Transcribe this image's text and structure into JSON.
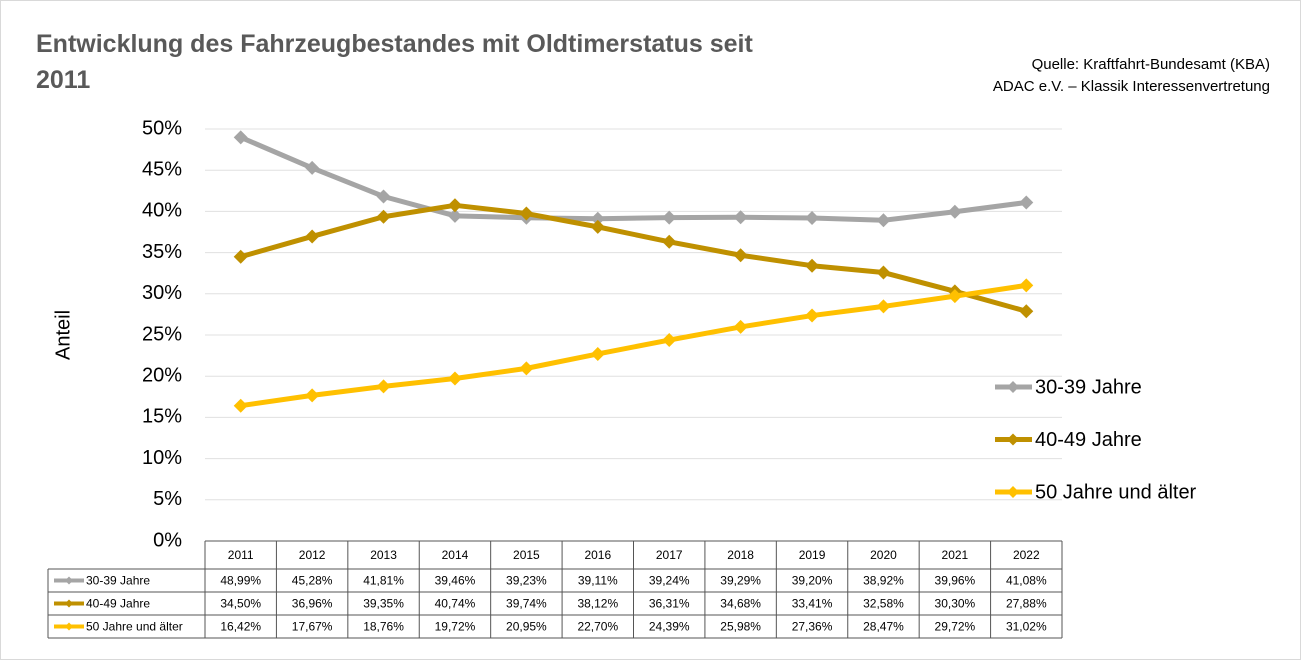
{
  "chart_data": {
    "type": "line",
    "title": "Entwicklung des Fahrzeugbestandes mit Oldtimerstatus seit 2011",
    "source": [
      "Quelle: Kraftfahrt-Bundesamt (KBA)",
      "ADAC e.V. – Klassik Interessenvertretung"
    ],
    "y_label": "Anteil",
    "categories": [
      "2011",
      "2012",
      "2013",
      "2014",
      "2015",
      "2016",
      "2017",
      "2018",
      "2019",
      "2020",
      "2021",
      "2022"
    ],
    "series": [
      {
        "name": "30-39 Jahre",
        "color": "#a5a5a5",
        "values": [
          48.99,
          45.28,
          41.81,
          39.46,
          39.23,
          39.11,
          39.24,
          39.29,
          39.2,
          38.92,
          39.96,
          41.08
        ],
        "value_labels": [
          "48,99%",
          "45,28%",
          "41,81%",
          "39,46%",
          "39,23%",
          "39,11%",
          "39,24%",
          "39,29%",
          "39,20%",
          "38,92%",
          "39,96%",
          "41,08%"
        ]
      },
      {
        "name": "40-49 Jahre",
        "color": "#bf9000",
        "values": [
          34.5,
          36.96,
          39.35,
          40.74,
          39.74,
          38.12,
          36.31,
          34.68,
          33.41,
          32.58,
          30.3,
          27.88
        ],
        "value_labels": [
          "34,50%",
          "36,96%",
          "39,35%",
          "40,74%",
          "39,74%",
          "38,12%",
          "36,31%",
          "34,68%",
          "33,41%",
          "32,58%",
          "30,30%",
          "27,88%"
        ]
      },
      {
        "name": "50 Jahre und älter",
        "color": "#ffc000",
        "values": [
          16.42,
          17.67,
          18.76,
          19.72,
          20.95,
          22.7,
          24.39,
          25.98,
          27.36,
          28.47,
          29.72,
          31.02
        ],
        "value_labels": [
          "16,42%",
          "17,67%",
          "18,76%",
          "19,72%",
          "20,95%",
          "22,70%",
          "24,39%",
          "25,98%",
          "27,36%",
          "28,47%",
          "29,72%",
          "31,02%"
        ]
      }
    ],
    "ylim": [
      0,
      50
    ],
    "yticks": [
      {
        "value": 0,
        "label": "0%"
      },
      {
        "value": 5,
        "label": "5%"
      },
      {
        "value": 10,
        "label": "10%"
      },
      {
        "value": 15,
        "label": "15%"
      },
      {
        "value": 20,
        "label": "20%"
      },
      {
        "value": 25,
        "label": "25%"
      },
      {
        "value": 30,
        "label": "30%"
      },
      {
        "value": 35,
        "label": "35%"
      },
      {
        "value": 40,
        "label": "40%"
      },
      {
        "value": 45,
        "label": "45%"
      },
      {
        "value": 50,
        "label": "50%"
      }
    ],
    "grid": true,
    "legend": "right"
  }
}
